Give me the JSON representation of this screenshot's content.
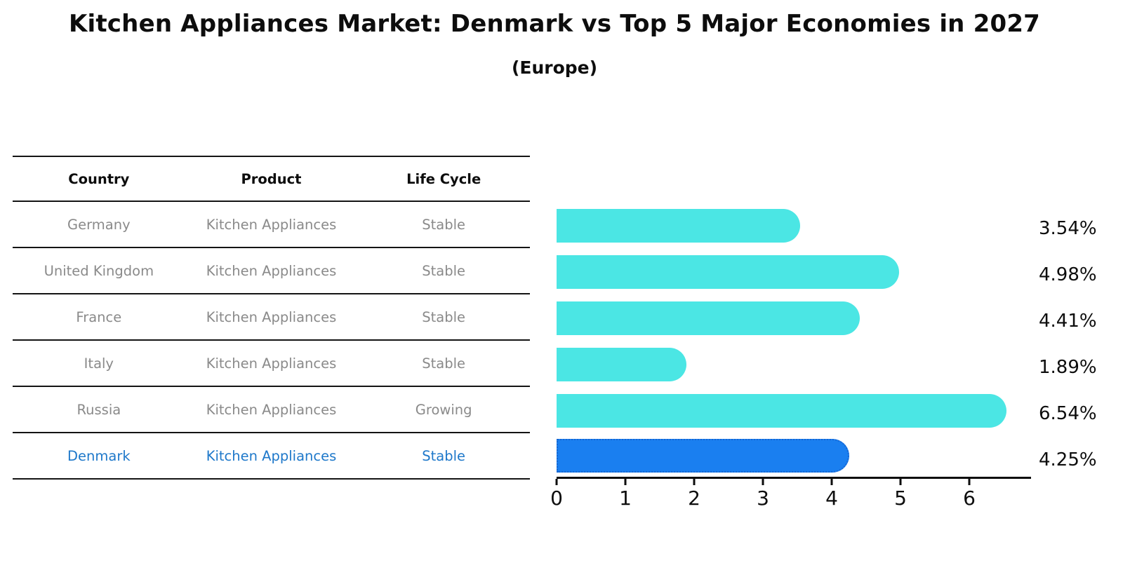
{
  "title": "Kitchen Appliances Market: Denmark vs Top 5 Major Economies in 2027",
  "subtitle": "(Europe)",
  "table": {
    "headers": [
      "Country",
      "Product",
      "Life Cycle"
    ],
    "rows": [
      {
        "country": "Germany",
        "product": "Kitchen Appliances",
        "life_cycle": "Stable",
        "highlight": false
      },
      {
        "country": "United Kingdom",
        "product": "Kitchen Appliances",
        "life_cycle": "Stable",
        "highlight": false
      },
      {
        "country": "France",
        "product": "Kitchen Appliances",
        "life_cycle": "Stable",
        "highlight": false
      },
      {
        "country": "Italy",
        "product": "Kitchen Appliances",
        "life_cycle": "Stable",
        "highlight": false
      },
      {
        "country": "Russia",
        "product": "Kitchen Appliances",
        "life_cycle": "Growing",
        "highlight": false
      },
      {
        "country": "Denmark",
        "product": "Kitchen Appliances",
        "life_cycle": "Stable",
        "highlight": true
      }
    ]
  },
  "chart_data": {
    "type": "bar",
    "orientation": "horizontal",
    "title": "Kitchen Appliances Market: Denmark vs Top 5 Major Economies in 2027",
    "subtitle": "(Europe)",
    "categories": [
      "Germany",
      "United Kingdom",
      "France",
      "Italy",
      "Russia",
      "Denmark"
    ],
    "values": [
      3.54,
      4.98,
      4.41,
      1.89,
      6.54,
      4.25
    ],
    "value_labels": [
      "3.54%",
      "4.98%",
      "4.41%",
      "1.89%",
      "6.54%",
      "4.25%"
    ],
    "unit": "percent",
    "xlabel": "",
    "ylabel": "",
    "xlim": [
      0,
      6.87
    ],
    "xticks": [
      0,
      1,
      2,
      3,
      4,
      5,
      6
    ],
    "grid": false,
    "legend": false,
    "highlight_index": 5
  },
  "colors": {
    "bar_default": "#4be6e4",
    "bar_highlight": "#1a7ff0",
    "bar_highlight_border": "#1566d2",
    "highlight_text": "#1e78ca",
    "table_text": "#8a8a8a",
    "axis": "#0d0d0d"
  }
}
